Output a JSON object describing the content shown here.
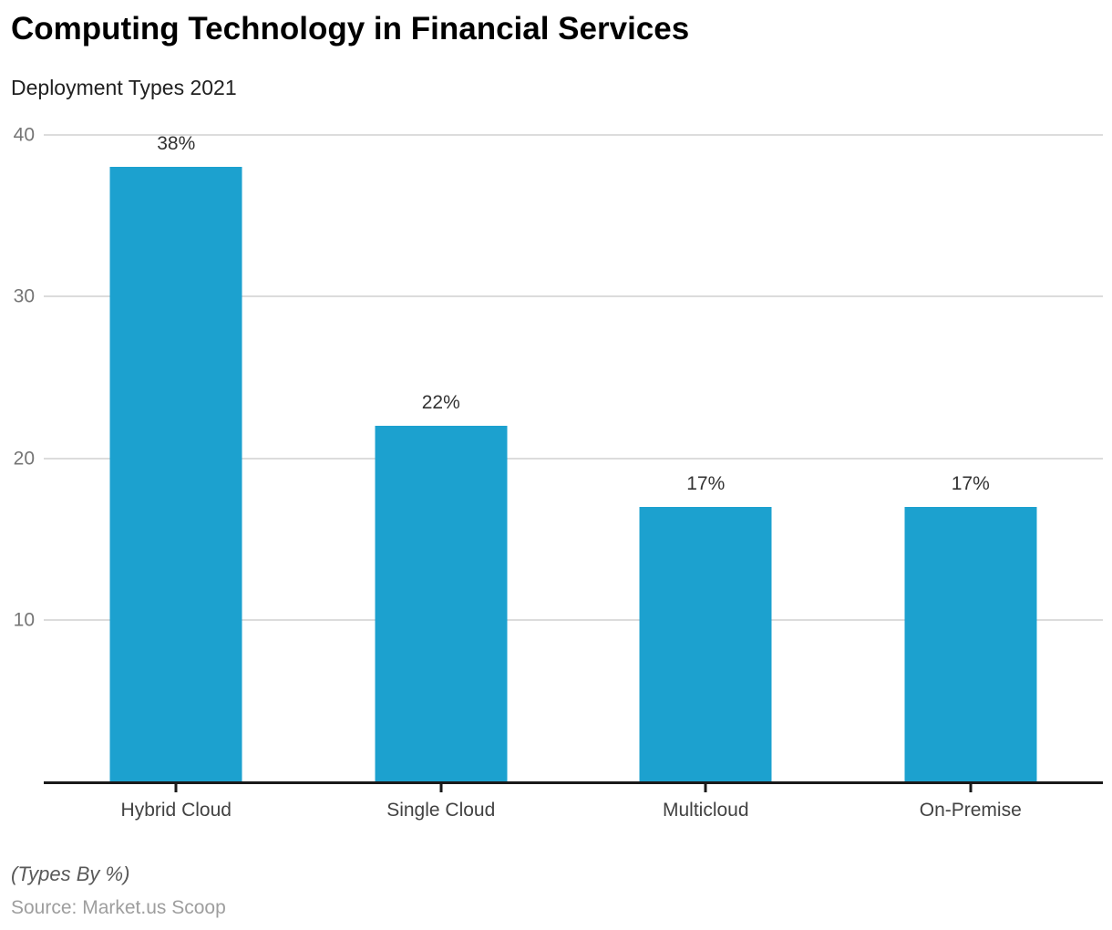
{
  "header": {
    "title": "Computing Technology in Financial Services",
    "subtitle": "Deployment Types 2021"
  },
  "footer": {
    "note": "(Types By %)",
    "source": "Source: Market.us Scoop"
  },
  "chart_data": {
    "type": "bar",
    "title": "Computing Technology in Financial Services",
    "subtitle": "Deployment Types 2021",
    "categories": [
      "Hybrid Cloud",
      "Single Cloud",
      "Multicloud",
      "On-Premise"
    ],
    "values": [
      38,
      22,
      17,
      17
    ],
    "data_labels": [
      "38%",
      "22%",
      "17%",
      "17%"
    ],
    "unit": "%",
    "xlabel": "",
    "ylabel": "",
    "ylim": [
      0,
      40
    ],
    "yticks": [
      10,
      20,
      30,
      40
    ],
    "grid": true,
    "legend": "none",
    "colors": {
      "bar": "#1CA1CF",
      "gridline": "#dcdcdc",
      "baseline": "#1a1a1a",
      "y_tick_text": "#757575",
      "x_label_text": "#424242",
      "value_label_text": "#333333"
    }
  }
}
